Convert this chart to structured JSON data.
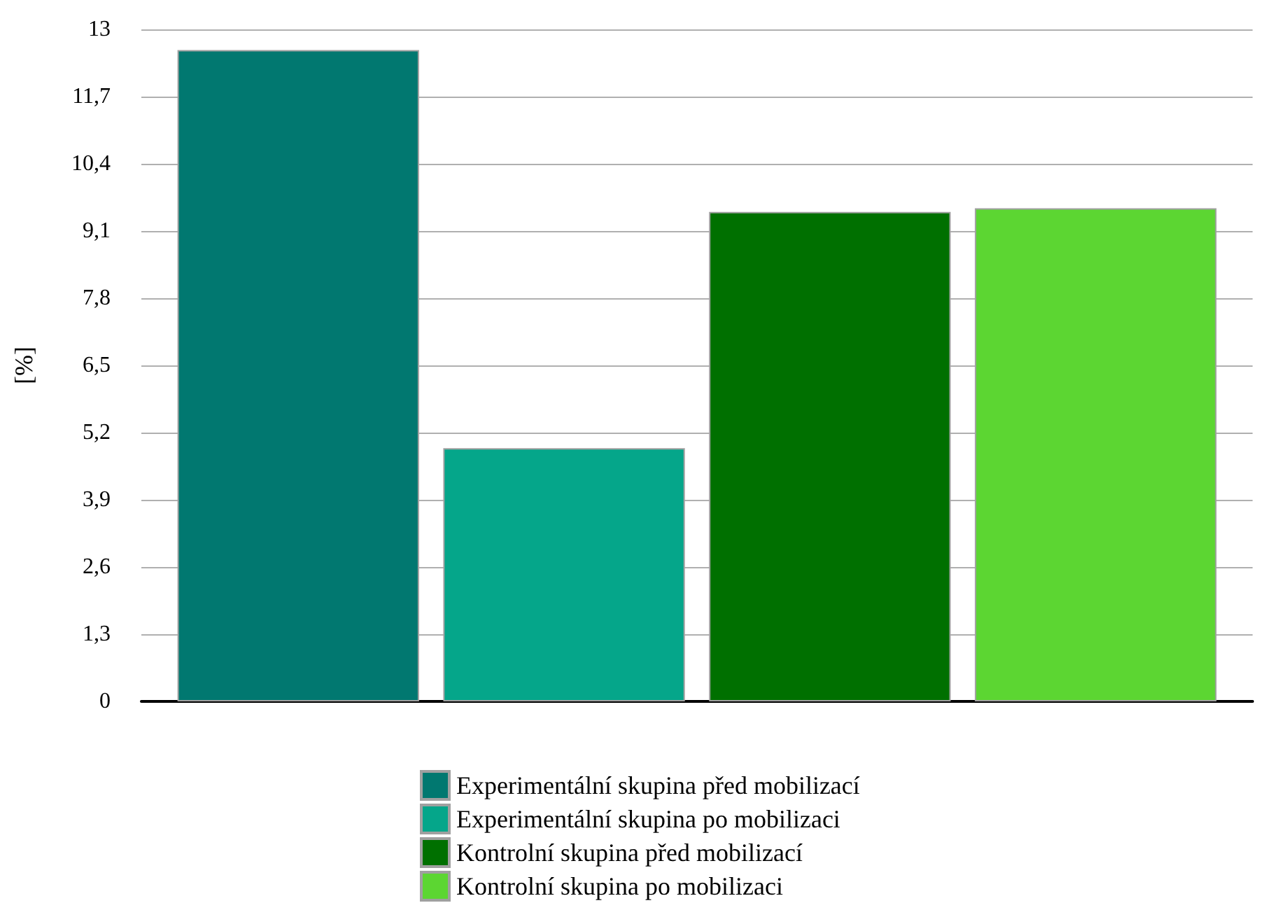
{
  "chart_data": {
    "type": "bar",
    "ylabel": "[%]",
    "categories": [
      null
    ],
    "series": [
      {
        "name": "Experimentální skupina před mobilizací",
        "color": "#017870",
        "values": [
          12.6
        ]
      },
      {
        "name": "Experimentální skupina po mobilizaci",
        "color": "#05a68a",
        "values": [
          4.9
        ]
      },
      {
        "name": "Kontrolní skupina před mobilizací",
        "color": "#007000",
        "values": [
          9.47
        ]
      },
      {
        "name": "Kontrolní skupina po mobilizaci",
        "color": "#5cd632",
        "values": [
          9.54
        ]
      }
    ],
    "ylim": [
      0,
      13
    ],
    "yticks": [
      0,
      {
        "value": 1.3,
        "label": "1,3"
      },
      {
        "value": 2.6,
        "label": "2,6"
      },
      {
        "value": 3.9,
        "label": "3,9"
      },
      {
        "value": 5.2,
        "label": "5,2"
      },
      {
        "value": 6.5,
        "label": "6,5"
      },
      {
        "value": 7.8,
        "label": "7,8"
      },
      {
        "value": 9.1,
        "label": "9,1"
      },
      {
        "value": 10.4,
        "label": "10,4"
      },
      {
        "value": 11.7,
        "label": "11,7"
      },
      13
    ],
    "grid": "y",
    "legend": "bottom",
    "tick_labels": "y"
  }
}
